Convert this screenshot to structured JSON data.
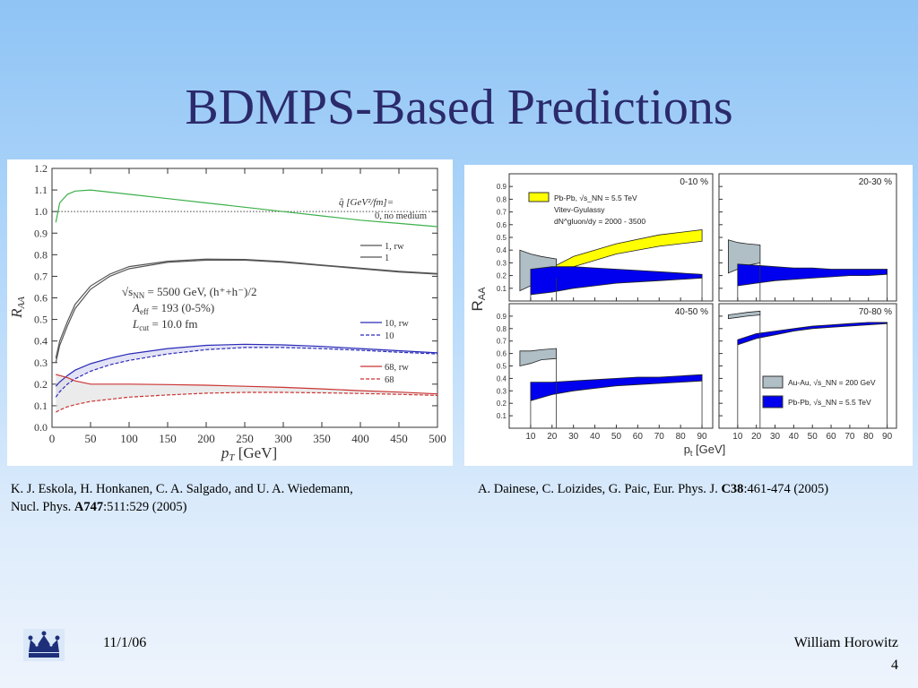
{
  "slide": {
    "title": "BDMPS-Based Predictions",
    "date": "11/1/06",
    "author": "William Horowitz",
    "page": "4",
    "logo": "crown-icon"
  },
  "references": {
    "left": {
      "line1": "K. J. Eskola, H. Honkanen, C. A. Salgado, and U. A. Wiedemann,",
      "line2_prefix": "Nucl. Phys. ",
      "line2_bold": "A747",
      "line2_suffix": ":511:529 (2005)"
    },
    "right": {
      "prefix": "A. Dainese, C. Loizides, G. Paic, Eur. Phys. J. ",
      "bold": "C38",
      "suffix": ":461-474 (2005)"
    }
  },
  "colors": {
    "title": "#2b2a6b",
    "green": "#3cb04a",
    "gray": "#555555",
    "blue": "#2a2ab8",
    "red": "#cc3333",
    "yellow": "#ffff00",
    "pbpb_blue": "#0000ee",
    "auau_gray": "#b0bec5"
  },
  "chart_data": [
    {
      "type": "line",
      "xlabel": "p_T [GeV]",
      "ylabel": "R_AA",
      "xlim": [
        0,
        500
      ],
      "ylim": [
        0,
        1.2
      ],
      "xticks": [
        0,
        50,
        100,
        150,
        200,
        250,
        300,
        350,
        400,
        450,
        500
      ],
      "yticks": [
        0.0,
        0.1,
        0.2,
        0.3,
        0.4,
        0.5,
        0.6,
        0.7,
        0.8,
        0.9,
        1.0,
        1.1,
        1.2
      ],
      "grid": false,
      "legend_title": "q̂ [GeV²/fm]=",
      "annotations": [
        "√s_NN = 5500 GeV, (h⁺+h⁻)/2",
        "A_eff = 193 (0-5%)",
        "L_cut = 10.0 fm"
      ],
      "reference_line": 1.0,
      "series": [
        {
          "name": "0, no medium",
          "color": "green",
          "x": [
            5,
            10,
            20,
            30,
            50,
            75,
            100,
            150,
            200,
            250,
            300,
            350,
            400,
            450,
            500
          ],
          "y": [
            0.95,
            1.04,
            1.08,
            1.095,
            1.1,
            1.09,
            1.08,
            1.06,
            1.04,
            1.02,
            1.0,
            0.98,
            0.96,
            0.945,
            0.93
          ]
        },
        {
          "name": "1, rw",
          "color": "gray",
          "x": [
            5,
            10,
            20,
            30,
            50,
            75,
            100,
            150,
            200,
            250,
            300,
            350,
            400,
            450,
            500
          ],
          "y": [
            0.3,
            0.38,
            0.47,
            0.55,
            0.64,
            0.7,
            0.735,
            0.765,
            0.775,
            0.775,
            0.765,
            0.75,
            0.735,
            0.72,
            0.71
          ]
        },
        {
          "name": "1",
          "color": "gray",
          "x": [
            5,
            10,
            20,
            30,
            50,
            75,
            100,
            150,
            200,
            250,
            300,
            350,
            400,
            450,
            500
          ],
          "y": [
            0.32,
            0.4,
            0.49,
            0.57,
            0.655,
            0.71,
            0.745,
            0.77,
            0.78,
            0.778,
            0.768,
            0.752,
            0.738,
            0.723,
            0.713
          ]
        },
        {
          "name": "10, rw",
          "color": "blue",
          "x": [
            5,
            10,
            20,
            30,
            50,
            75,
            100,
            150,
            200,
            250,
            300,
            350,
            400,
            450,
            500
          ],
          "y": [
            0.19,
            0.21,
            0.24,
            0.265,
            0.295,
            0.32,
            0.34,
            0.365,
            0.38,
            0.385,
            0.382,
            0.375,
            0.365,
            0.355,
            0.345
          ]
        },
        {
          "name": "10",
          "color": "blue",
          "x": [
            5,
            10,
            20,
            30,
            50,
            75,
            100,
            150,
            200,
            250,
            300,
            350,
            400,
            450,
            500
          ],
          "y": [
            0.14,
            0.165,
            0.2,
            0.225,
            0.26,
            0.29,
            0.31,
            0.34,
            0.36,
            0.37,
            0.37,
            0.365,
            0.357,
            0.348,
            0.34
          ]
        },
        {
          "name": "68, rw",
          "color": "red",
          "x": [
            5,
            10,
            20,
            30,
            50,
            75,
            100,
            150,
            200,
            250,
            300,
            350,
            400,
            450,
            500
          ],
          "y": [
            0.245,
            0.24,
            0.23,
            0.215,
            0.2,
            0.2,
            0.2,
            0.198,
            0.195,
            0.19,
            0.185,
            0.178,
            0.17,
            0.163,
            0.155
          ]
        },
        {
          "name": "68",
          "color": "red",
          "x": [
            5,
            10,
            20,
            30,
            50,
            75,
            100,
            150,
            200,
            250,
            300,
            350,
            400,
            450,
            500
          ],
          "y": [
            0.07,
            0.08,
            0.095,
            0.105,
            0.12,
            0.13,
            0.14,
            0.15,
            0.158,
            0.162,
            0.162,
            0.16,
            0.157,
            0.153,
            0.148
          ]
        }
      ]
    },
    {
      "type": "area",
      "xlabel": "p_t [GeV]",
      "ylabel": "R_AA",
      "xlim": [
        0,
        95
      ],
      "xticks": [
        10,
        20,
        30,
        40,
        50,
        60,
        70,
        80,
        90
      ],
      "yticks": [
        0.1,
        0.2,
        0.3,
        0.4,
        0.5,
        0.6,
        0.7,
        0.8,
        0.9
      ],
      "ylim": [
        0,
        1.0
      ],
      "legend_top": [
        "Pb-Pb, √s_NN = 5.5 TeV",
        "Vitev-Gyulassy",
        "dN^gluon/dy = 2000 - 3500"
      ],
      "legend_bottom": [
        "Au-Au, √s_NN = 200 GeV",
        "Pb-Pb, √s_NN = 5.5 TeV"
      ],
      "panels": [
        {
          "label": "0-10 %",
          "auau": {
            "x": [
              5,
              10,
              15,
              22
            ],
            "lo": [
              0.08,
              0.12,
              0.16,
              0.18
            ],
            "hi": [
              0.4,
              0.37,
              0.35,
              0.33
            ]
          },
          "pbpb": {
            "x": [
              10,
              20,
              30,
              40,
              50,
              60,
              70,
              80,
              90
            ],
            "lo": [
              0.05,
              0.07,
              0.1,
              0.12,
              0.14,
              0.15,
              0.16,
              0.17,
              0.18
            ],
            "hi": [
              0.25,
              0.27,
              0.27,
              0.26,
              0.25,
              0.24,
              0.23,
              0.22,
              0.21
            ]
          },
          "vitev": {
            "x": [
              15,
              30,
              50,
              70,
              90
            ],
            "lo": [
              0.15,
              0.27,
              0.37,
              0.43,
              0.47
            ],
            "hi": [
              0.22,
              0.35,
              0.45,
              0.52,
              0.56
            ]
          }
        },
        {
          "label": "20-30 %",
          "auau": {
            "x": [
              5,
              10,
              15,
              22
            ],
            "lo": [
              0.22,
              0.25,
              0.28,
              0.3
            ],
            "hi": [
              0.48,
              0.46,
              0.45,
              0.44
            ]
          },
          "pbpb": {
            "x": [
              10,
              20,
              30,
              40,
              50,
              60,
              70,
              80,
              90
            ],
            "lo": [
              0.12,
              0.14,
              0.16,
              0.17,
              0.18,
              0.19,
              0.2,
              0.2,
              0.21
            ],
            "hi": [
              0.29,
              0.28,
              0.27,
              0.26,
              0.26,
              0.25,
              0.25,
              0.25,
              0.25
            ]
          }
        },
        {
          "label": "40-50 %",
          "auau": {
            "x": [
              5,
              10,
              15,
              22
            ],
            "lo": [
              0.5,
              0.52,
              0.55,
              0.56
            ],
            "hi": [
              0.62,
              0.62,
              0.63,
              0.64
            ]
          },
          "pbpb": {
            "x": [
              10,
              20,
              30,
              40,
              50,
              60,
              70,
              80,
              90
            ],
            "lo": [
              0.22,
              0.27,
              0.3,
              0.32,
              0.34,
              0.35,
              0.36,
              0.37,
              0.38
            ],
            "hi": [
              0.37,
              0.37,
              0.38,
              0.39,
              0.4,
              0.41,
              0.41,
              0.42,
              0.43
            ]
          }
        },
        {
          "label": "70-80 %",
          "auau": {
            "x": [
              5,
              10,
              15,
              22
            ],
            "lo": [
              0.88,
              0.89,
              0.9,
              0.91
            ],
            "hi": [
              0.91,
              0.92,
              0.93,
              0.94
            ]
          },
          "pbpb": {
            "x": [
              10,
              20,
              30,
              40,
              50,
              60,
              70,
              80,
              90
            ],
            "lo": [
              0.67,
              0.72,
              0.75,
              0.78,
              0.8,
              0.81,
              0.82,
              0.83,
              0.84
            ],
            "hi": [
              0.71,
              0.76,
              0.78,
              0.8,
              0.82,
              0.83,
              0.84,
              0.85,
              0.85
            ]
          }
        }
      ]
    }
  ]
}
